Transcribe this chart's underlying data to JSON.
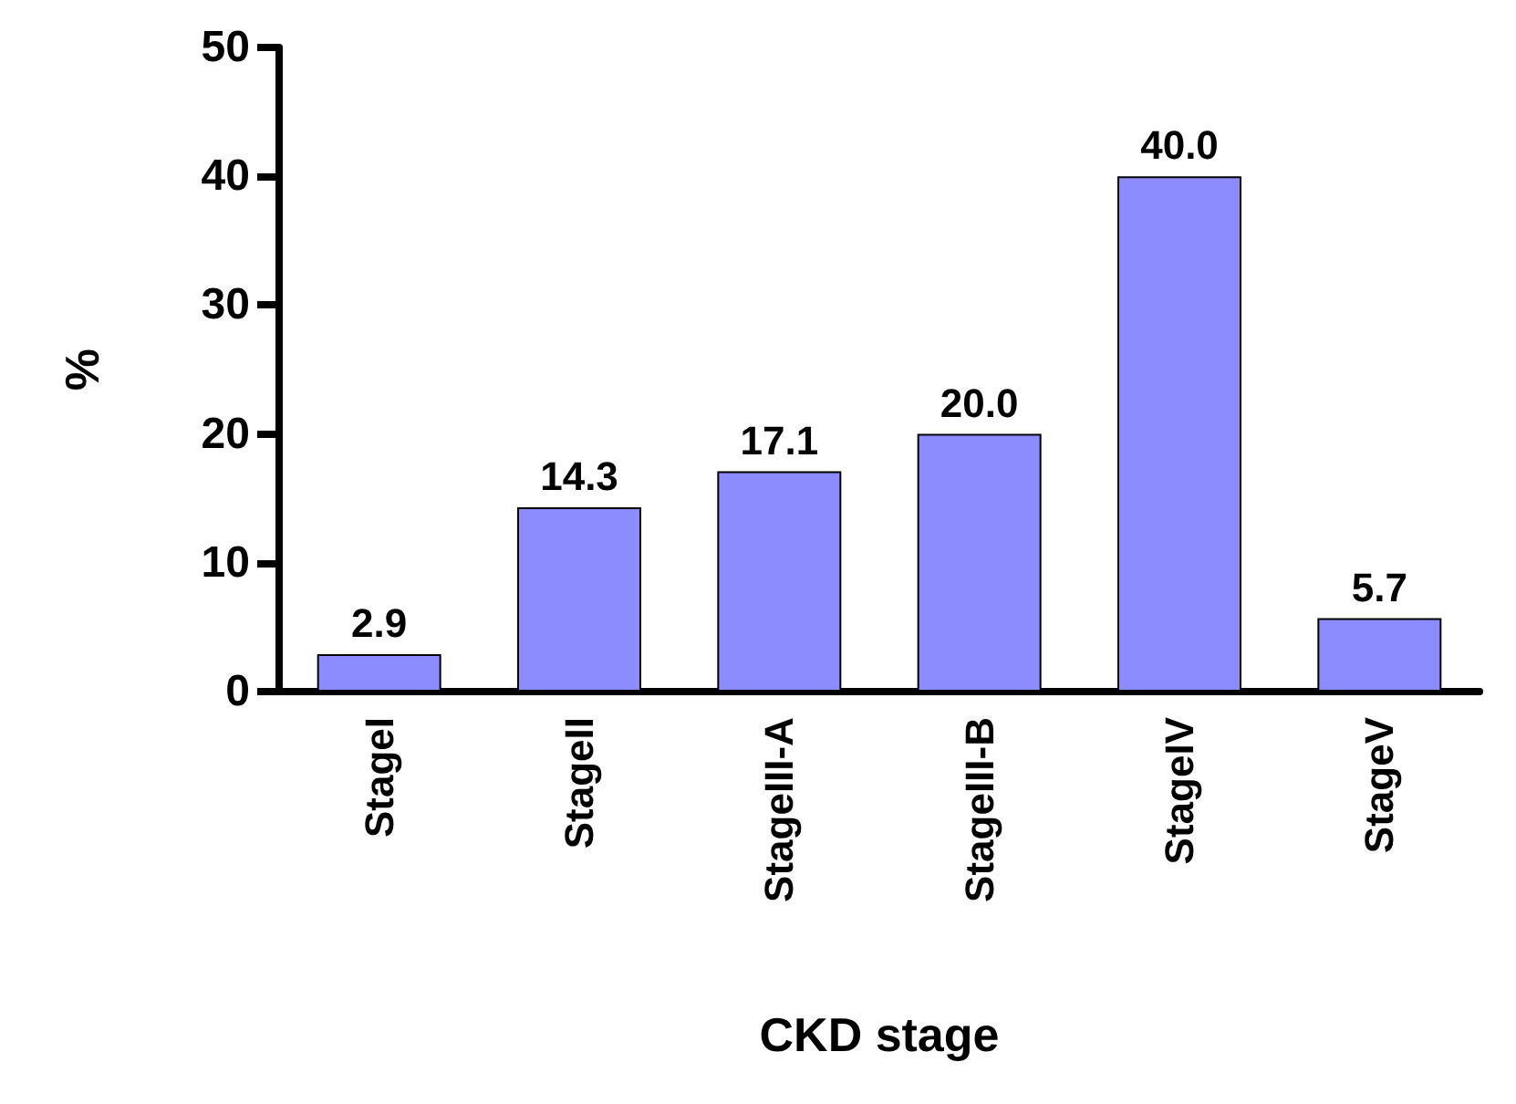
{
  "chart_data": {
    "type": "bar",
    "xlabel": "CKD stage",
    "ylabel": "%",
    "categories": [
      "StageI",
      "StageII",
      "StageIII-A",
      "StageIII-B",
      "StageIV",
      "StageV"
    ],
    "values": [
      2.9,
      14.3,
      17.1,
      20.0,
      40.0,
      5.7
    ],
    "value_labels": [
      "2.9",
      "14.3",
      "17.1",
      "20.0",
      "40.0",
      "5.7"
    ],
    "color": "#8c8cff",
    "ylim": [
      0,
      50
    ],
    "yticks": [
      0,
      10,
      20,
      30,
      40,
      50
    ],
    "grid": false
  }
}
